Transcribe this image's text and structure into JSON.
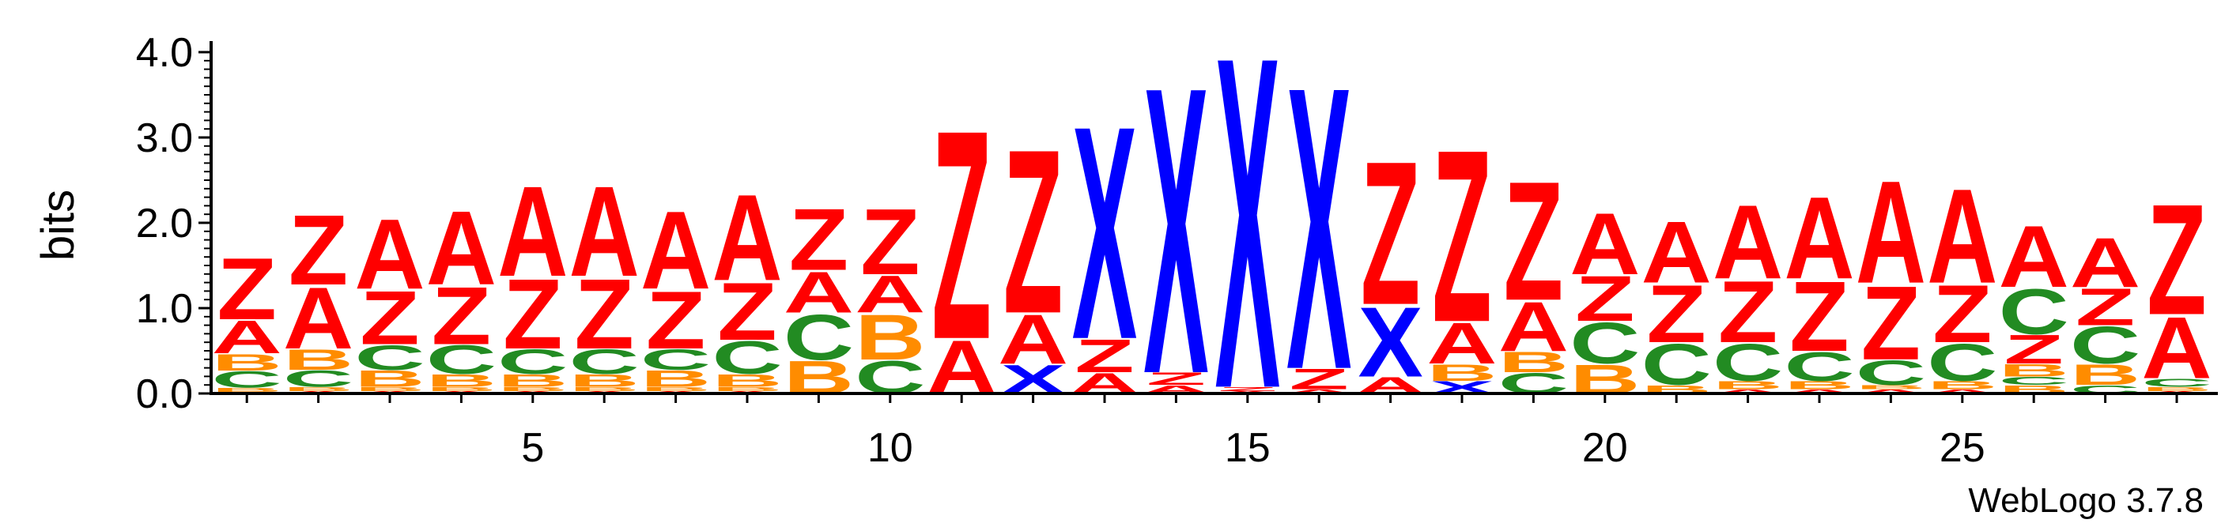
{
  "chart_data": {
    "type": "sequence-logo",
    "ylabel": "bits",
    "ylim": [
      0,
      4.0
    ],
    "y_ticks": [
      "0.0",
      "1.0",
      "2.0",
      "3.0",
      "4.0"
    ],
    "x_ticks": [
      5,
      10,
      15,
      20,
      25
    ],
    "x_range": [
      1,
      28
    ],
    "footer": "WebLogo 3.7.8",
    "colors": {
      "A": "#ff0000",
      "Z": "#ff0000",
      "X": "#0000ff",
      "C": "#228b22",
      "B": "#ff8c00"
    },
    "positions": [
      {
        "pos": 1,
        "stack": [
          [
            "A",
            0.02
          ],
          [
            "B",
            0.05
          ],
          [
            "C",
            0.2
          ],
          [
            "B",
            0.2
          ],
          [
            "A",
            0.4
          ],
          [
            "Z",
            0.75
          ]
        ]
      },
      {
        "pos": 2,
        "stack": [
          [
            "A",
            0.03
          ],
          [
            "B",
            0.05
          ],
          [
            "C",
            0.2
          ],
          [
            "B",
            0.25
          ],
          [
            "A",
            0.75
          ],
          [
            "Z",
            0.85
          ]
        ]
      },
      {
        "pos": 3,
        "stack": [
          [
            "A",
            0.03
          ],
          [
            "B",
            0.05
          ],
          [
            "B",
            0.2
          ],
          [
            "C",
            0.3
          ],
          [
            "Z",
            0.65
          ],
          [
            "A",
            0.85
          ]
        ]
      },
      {
        "pos": 4,
        "stack": [
          [
            "A",
            0.03
          ],
          [
            "B",
            0.05
          ],
          [
            "B",
            0.15
          ],
          [
            "C",
            0.35
          ],
          [
            "Z",
            0.7
          ],
          [
            "A",
            0.9
          ]
        ]
      },
      {
        "pos": 5,
        "stack": [
          [
            "A",
            0.03
          ],
          [
            "B",
            0.05
          ],
          [
            "B",
            0.15
          ],
          [
            "C",
            0.3
          ],
          [
            "Z",
            0.85
          ],
          [
            "A",
            1.1
          ]
        ]
      },
      {
        "pos": 6,
        "stack": [
          [
            "A",
            0.03
          ],
          [
            "B",
            0.05
          ],
          [
            "B",
            0.15
          ],
          [
            "C",
            0.3
          ],
          [
            "Z",
            0.85
          ],
          [
            "A",
            1.1
          ]
        ]
      },
      {
        "pos": 7,
        "stack": [
          [
            "A",
            0.03
          ],
          [
            "B",
            0.05
          ],
          [
            "B",
            0.2
          ],
          [
            "C",
            0.25
          ],
          [
            "Z",
            0.7
          ],
          [
            "A",
            0.95
          ]
        ]
      },
      {
        "pos": 8,
        "stack": [
          [
            "A",
            0.03
          ],
          [
            "B",
            0.05
          ],
          [
            "B",
            0.15
          ],
          [
            "C",
            0.4
          ],
          [
            "Z",
            0.7
          ],
          [
            "A",
            1.05
          ]
        ]
      },
      {
        "pos": 9,
        "stack": [
          [
            "B",
            0.4
          ],
          [
            "C",
            0.55
          ],
          [
            "A",
            0.5
          ],
          [
            "Z",
            0.75
          ]
        ]
      },
      {
        "pos": 10,
        "stack": [
          [
            "C",
            0.4
          ],
          [
            "B",
            0.55
          ],
          [
            "A",
            0.45
          ],
          [
            "Z",
            0.8
          ]
        ]
      },
      {
        "pos": 11,
        "stack": [
          [
            "A",
            0.65
          ],
          [
            "Z",
            2.55
          ]
        ]
      },
      {
        "pos": 12,
        "stack": [
          [
            "X",
            0.35
          ],
          [
            "A",
            0.6
          ],
          [
            "Z",
            2.0
          ]
        ]
      },
      {
        "pos": 13,
        "stack": [
          [
            "A",
            0.25
          ],
          [
            "Z",
            0.4
          ],
          [
            "X",
            2.6
          ]
        ]
      },
      {
        "pos": 14,
        "stack": [
          [
            "A",
            0.1
          ],
          [
            "Z",
            0.15
          ],
          [
            "X",
            3.5
          ]
        ]
      },
      {
        "pos": 15,
        "stack": [
          [
            "A",
            0.03
          ],
          [
            "Z",
            0.05
          ],
          [
            "X",
            4.05
          ]
        ]
      },
      {
        "pos": 16,
        "stack": [
          [
            "A",
            0.05
          ],
          [
            "Z",
            0.25
          ],
          [
            "X",
            3.45
          ]
        ]
      },
      {
        "pos": 17,
        "stack": [
          [
            "A",
            0.2
          ],
          [
            "X",
            0.85
          ],
          [
            "Z",
            1.75
          ]
        ]
      },
      {
        "pos": 18,
        "stack": [
          [
            "X",
            0.15
          ],
          [
            "B",
            0.2
          ],
          [
            "A",
            0.5
          ],
          [
            "Z",
            2.1
          ]
        ]
      },
      {
        "pos": 19,
        "stack": [
          [
            "C",
            0.25
          ],
          [
            "B",
            0.25
          ],
          [
            "A",
            0.6
          ],
          [
            "Z",
            1.45
          ]
        ]
      },
      {
        "pos": 20,
        "stack": [
          [
            "B",
            0.35
          ],
          [
            "C",
            0.5
          ],
          [
            "Z",
            0.55
          ],
          [
            "A",
            0.75
          ]
        ]
      },
      {
        "pos": 21,
        "stack": [
          [
            "B",
            0.1
          ],
          [
            "C",
            0.5
          ],
          [
            "Z",
            0.7
          ],
          [
            "A",
            0.75
          ]
        ]
      },
      {
        "pos": 22,
        "stack": [
          [
            "A",
            0.05
          ],
          [
            "B",
            0.1
          ],
          [
            "C",
            0.45
          ],
          [
            "Z",
            0.75
          ],
          [
            "A",
            0.9
          ]
        ]
      },
      {
        "pos": 23,
        "stack": [
          [
            "A",
            0.05
          ],
          [
            "B",
            0.1
          ],
          [
            "C",
            0.35
          ],
          [
            "Z",
            0.85
          ],
          [
            "A",
            1.0
          ]
        ]
      },
      {
        "pos": 24,
        "stack": [
          [
            "A",
            0.05
          ],
          [
            "B",
            0.05
          ],
          [
            "C",
            0.3
          ],
          [
            "Z",
            0.9
          ],
          [
            "A",
            1.25
          ]
        ]
      },
      {
        "pos": 25,
        "stack": [
          [
            "A",
            0.05
          ],
          [
            "B",
            0.1
          ],
          [
            "C",
            0.45
          ],
          [
            "Z",
            0.7
          ],
          [
            "A",
            1.15
          ]
        ]
      },
      {
        "pos": 26,
        "stack": [
          [
            "B",
            0.1
          ],
          [
            "C",
            0.1
          ],
          [
            "B",
            0.15
          ],
          [
            "Z",
            0.35
          ],
          [
            "C",
            0.55
          ],
          [
            "A",
            0.75
          ]
        ]
      },
      {
        "pos": 27,
        "stack": [
          [
            "C",
            0.1
          ],
          [
            "B",
            0.25
          ],
          [
            "C",
            0.45
          ],
          [
            "Z",
            0.45
          ],
          [
            "A",
            0.6
          ]
        ]
      },
      {
        "pos": 28,
        "stack": [
          [
            "A",
            0.03
          ],
          [
            "B",
            0.05
          ],
          [
            "C",
            0.1
          ],
          [
            "A",
            0.75
          ],
          [
            "Z",
            1.35
          ]
        ]
      }
    ]
  }
}
